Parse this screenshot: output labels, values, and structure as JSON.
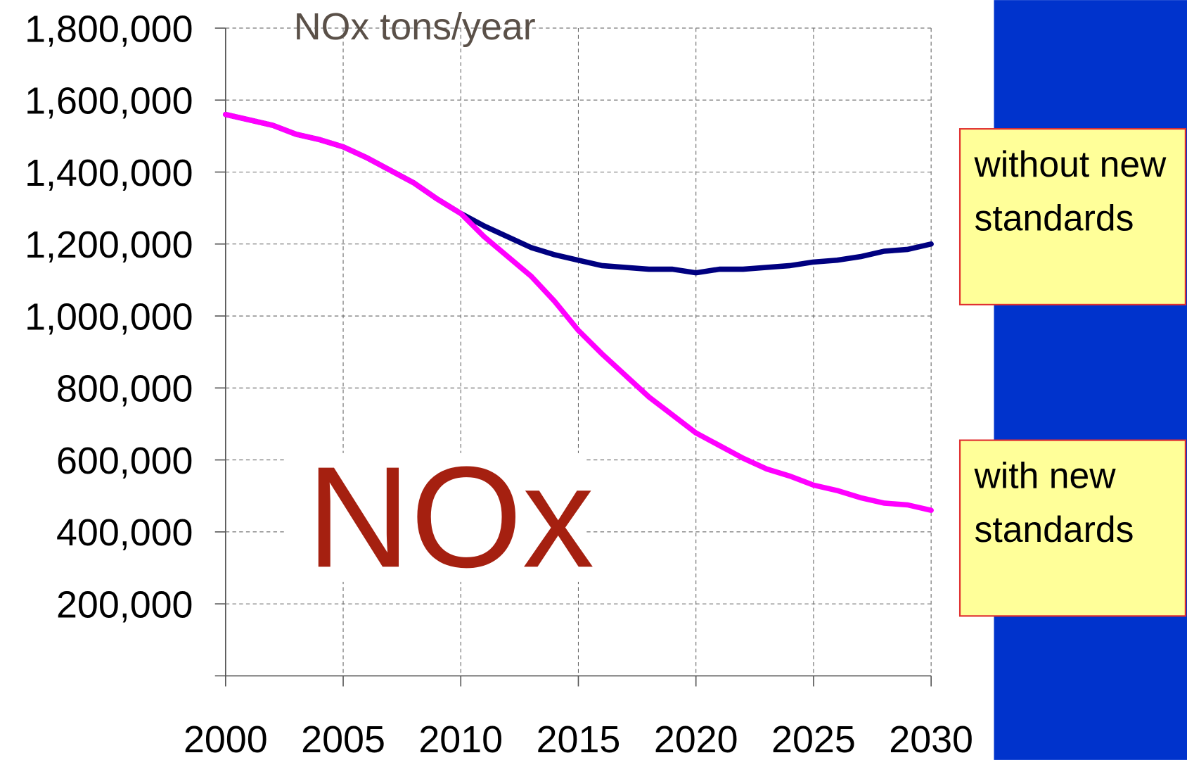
{
  "chart_data": {
    "type": "line",
    "title": "NOx tons/year",
    "annotation": "NOx",
    "x": [
      2000,
      2001,
      2002,
      2003,
      2004,
      2005,
      2006,
      2007,
      2008,
      2009,
      2010,
      2011,
      2012,
      2013,
      2014,
      2015,
      2016,
      2017,
      2018,
      2019,
      2020,
      2021,
      2022,
      2023,
      2024,
      2025,
      2026,
      2027,
      2028,
      2029,
      2030
    ],
    "series": [
      {
        "name": "without new standards",
        "color": "#000080",
        "values": [
          1560000,
          1545000,
          1530000,
          1505000,
          1490000,
          1470000,
          1440000,
          1405000,
          1370000,
          1325000,
          1285000,
          1250000,
          1220000,
          1190000,
          1170000,
          1155000,
          1140000,
          1135000,
          1130000,
          1130000,
          1120000,
          1130000,
          1130000,
          1135000,
          1140000,
          1150000,
          1155000,
          1165000,
          1180000,
          1185000,
          1200000
        ]
      },
      {
        "name": "with new standards",
        "color": "#ff00ff",
        "values": [
          1560000,
          1545000,
          1530000,
          1505000,
          1490000,
          1470000,
          1440000,
          1405000,
          1370000,
          1325000,
          1285000,
          1220000,
          1165000,
          1110000,
          1040000,
          960000,
          895000,
          835000,
          775000,
          725000,
          675000,
          640000,
          605000,
          575000,
          555000,
          530000,
          515000,
          495000,
          480000,
          475000,
          460000
        ]
      }
    ],
    "xlim": [
      2000,
      2030
    ],
    "xticks": [
      2000,
      2005,
      2010,
      2015,
      2020,
      2025,
      2030
    ],
    "ylim": [
      0,
      1800000
    ],
    "yticks": [
      {
        "value": 200000,
        "label": "200,000"
      },
      {
        "value": 400000,
        "label": "400,000"
      },
      {
        "value": 600000,
        "label": "600,000"
      },
      {
        "value": 800000,
        "label": "800,000"
      },
      {
        "value": 1000000,
        "label": "1,000,000"
      },
      {
        "value": 1200000,
        "label": "1,200,000"
      },
      {
        "value": 1400000,
        "label": "1,400,000"
      },
      {
        "value": 1600000,
        "label": "1,600,000"
      },
      {
        "value": 1800000,
        "label": "1,800,000"
      }
    ],
    "grid": true
  }
}
